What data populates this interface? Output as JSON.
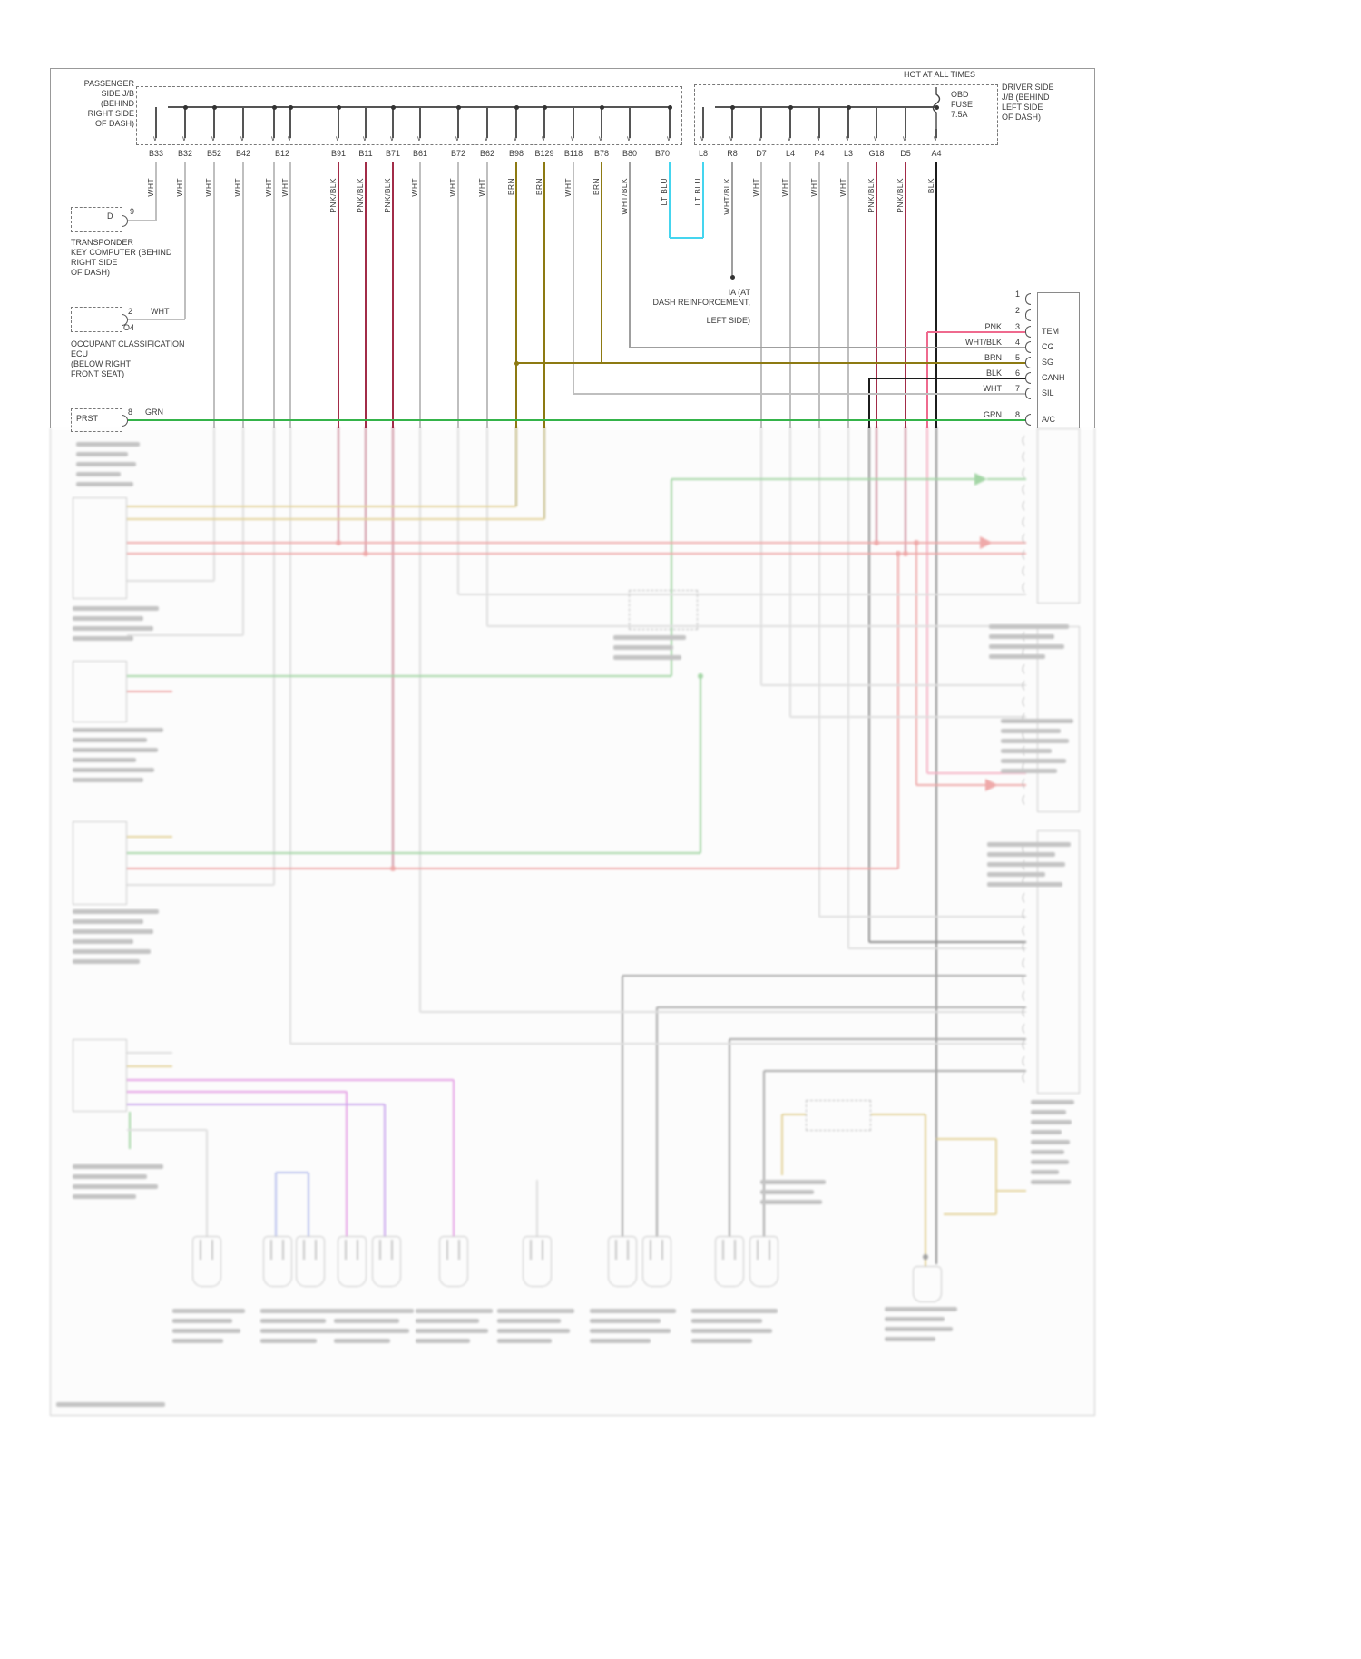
{
  "colors": {
    "wht": "#bfbfbf",
    "wht_blk": "#9f9f9f",
    "pnk_blk": "#a22c48",
    "brn": "#8d7a12",
    "lt_blu": "#45d5ef",
    "blk": "#1c1c1c",
    "grn": "#35b44a",
    "pnk": "#ef6a8e",
    "red": "#e05555",
    "green_soft": "#4caf50",
    "tan": "#c8a838",
    "magenta": "#cc44cc",
    "purple": "#9955dd",
    "lavender": "#7788dd",
    "gray_dark": "#555555",
    "bus": "#555555"
  },
  "passenger_jb": {
    "label_lines": [
      "PASSENGER",
      "SIDE J/B (BEHIND",
      "RIGHT SIDE",
      "OF DASH)"
    ],
    "connectors": [
      {
        "id": "B33",
        "wire": "WHT"
      },
      {
        "id": "B32",
        "wire": "WHT"
      },
      {
        "id": "B52",
        "wire": "WHT"
      },
      {
        "id": "B42",
        "wire": "WHT"
      },
      {
        "id": "B12",
        "wire": "WHT",
        "wire2": "WHT"
      },
      {
        "id": "B91",
        "wire": "PNK/BLK"
      },
      {
        "id": "B11",
        "wire": "PNK/BLK"
      },
      {
        "id": "B71",
        "wire": "PNK/BLK"
      },
      {
        "id": "B61",
        "wire": "WHT"
      },
      {
        "id": "B72",
        "wire": "WHT"
      },
      {
        "id": "B62",
        "wire": "WHT"
      },
      {
        "id": "B98",
        "wire": "BRN"
      },
      {
        "id": "B129",
        "wire": "BRN"
      },
      {
        "id": "B118",
        "wire": "WHT"
      },
      {
        "id": "B78",
        "wire": "BRN"
      },
      {
        "id": "B80",
        "wire": "WHT/BLK"
      },
      {
        "id": "B70",
        "wire": "LT BLU"
      }
    ]
  },
  "driver_jb": {
    "hot_label": "HOT AT ALL TIMES",
    "fuse": {
      "name_lines": [
        "OBD",
        "FUSE"
      ],
      "rating": "7.5A"
    },
    "label_lines": [
      "DRIVER SIDE",
      "J/B (BEHIND",
      "LEFT SIDE",
      "OF DASH)"
    ],
    "connectors": [
      {
        "id": "L8",
        "wire": "LT BLU"
      },
      {
        "id": "R8",
        "wire": "WHT/BLK"
      },
      {
        "id": "D7",
        "wire": "WHT"
      },
      {
        "id": "L4",
        "wire": "WHT"
      },
      {
        "id": "P4",
        "wire": "WHT"
      },
      {
        "id": "L3",
        "wire": "WHT"
      },
      {
        "id": "G18",
        "wire": "PNK/BLK"
      },
      {
        "id": "D5",
        "wire": "PNK/BLK"
      },
      {
        "id": "A4",
        "wire": "BLK"
      }
    ]
  },
  "transponder": {
    "designator": "D",
    "pin": "9",
    "label_lines": [
      "TRANSPONDER",
      "KEY COMPUTER (BEHIND",
      "RIGHT SIDE",
      "OF DASH)"
    ]
  },
  "occupant_ecu": {
    "pin": "2",
    "wire": "WHT",
    "connector": "O4",
    "label_lines": [
      "OCCUPANT CLASSIFICATION",
      "ECU",
      "(BELOW RIGHT",
      "FRONT SEAT)"
    ]
  },
  "prst": {
    "name": "PRST",
    "pin": "8",
    "wire": "GRN"
  },
  "ground": {
    "label_lines": [
      "IA (AT",
      "DASH REINFORCEMENT,",
      "LEFT SIDE)"
    ]
  },
  "dlc": {
    "pins": [
      {
        "n": "1",
        "wire": "",
        "name": ""
      },
      {
        "n": "2",
        "wire": "",
        "name": ""
      },
      {
        "n": "3",
        "wire": "PNK",
        "name": "TEM"
      },
      {
        "n": "4",
        "wire": "WHT/BLK",
        "name": "CG"
      },
      {
        "n": "5",
        "wire": "BRN",
        "name": "SG"
      },
      {
        "n": "6",
        "wire": "BLK",
        "name": "CANH"
      },
      {
        "n": "7",
        "wire": "WHT",
        "name": "SIL"
      },
      {
        "n": "8",
        "wire": "GRN",
        "name": "A/C"
      }
    ]
  }
}
